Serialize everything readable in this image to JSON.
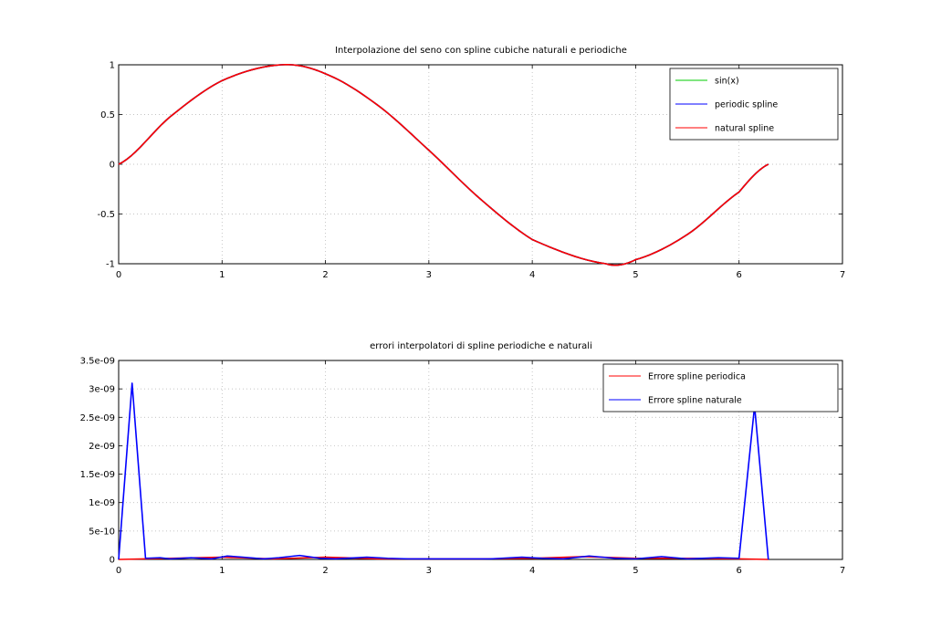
{
  "chart_data": [
    {
      "type": "line",
      "title": "Interpolazione del seno con spline cubiche naturali e periodiche",
      "xlabel": "",
      "ylabel": "",
      "xlim": [
        0,
        7
      ],
      "ylim": [
        -1,
        1
      ],
      "x_ticks": [
        "0",
        "1",
        "2",
        "3",
        "4",
        "5",
        "6",
        "7"
      ],
      "y_ticks": [
        "1",
        "0.5",
        "0",
        "-0.5",
        "-1"
      ],
      "grid": true,
      "legend_position": "top-right",
      "series": [
        {
          "name": "sin(x)",
          "color": "#00cc00",
          "x": [
            0,
            0.5,
            1,
            1.571,
            2,
            2.5,
            3,
            3.5,
            4,
            4.712,
            5,
            5.5,
            6,
            6.283
          ],
          "y": [
            0,
            0.479,
            0.841,
            1.0,
            0.909,
            0.598,
            0.141,
            -0.351,
            -0.757,
            -1.0,
            -0.959,
            -0.706,
            -0.279,
            0
          ]
        },
        {
          "name": "periodic spline",
          "color": "#0000ff",
          "x": [
            0,
            0.5,
            1,
            1.571,
            2,
            2.5,
            3,
            3.5,
            4,
            4.712,
            5,
            5.5,
            6,
            6.283
          ],
          "y": [
            0,
            0.479,
            0.841,
            1.0,
            0.909,
            0.598,
            0.141,
            -0.351,
            -0.757,
            -1.0,
            -0.959,
            -0.706,
            -0.279,
            0
          ]
        },
        {
          "name": "natural spline",
          "color": "#ff0000",
          "x": [
            0,
            0.5,
            1,
            1.571,
            2,
            2.5,
            3,
            3.5,
            4,
            4.712,
            5,
            5.5,
            6,
            6.283
          ],
          "y": [
            0,
            0.479,
            0.841,
            1.0,
            0.909,
            0.598,
            0.141,
            -0.351,
            -0.757,
            -1.0,
            -0.959,
            -0.706,
            -0.279,
            0
          ]
        }
      ]
    },
    {
      "type": "line",
      "title": "errori interpolatori di spline periodiche e naturali",
      "xlabel": "",
      "ylabel": "",
      "xlim": [
        0,
        7
      ],
      "ylim": [
        0,
        3.5e-09
      ],
      "x_ticks": [
        "0",
        "1",
        "2",
        "3",
        "4",
        "5",
        "6",
        "7"
      ],
      "y_ticks": [
        "3.5e-09",
        "3e-09",
        "2.5e-09",
        "2e-09",
        "1.5e-09",
        "1e-09",
        "5e-10",
        "0"
      ],
      "grid": true,
      "legend_position": "top-right",
      "series": [
        {
          "name": "Errore spline periodica",
          "color": "#ff0000",
          "x": [
            0,
            0.5,
            1.0,
            1.5,
            2.0,
            2.5,
            3.0,
            3.5,
            4.0,
            4.5,
            5.0,
            5.5,
            6.0,
            6.283
          ],
          "y": [
            0,
            2e-11,
            4e-11,
            1e-11,
            4e-11,
            1e-11,
            1e-11,
            1e-11,
            2e-11,
            5e-11,
            2e-11,
            2e-11,
            1e-11,
            0
          ]
        },
        {
          "name": "Errore spline naturale",
          "color": "#0000ff",
          "x": [
            0,
            0.13,
            0.26,
            0.4,
            0.5,
            0.7,
            0.9,
            1.05,
            1.2,
            1.4,
            1.55,
            1.75,
            1.95,
            2.1,
            2.4,
            2.6,
            2.8,
            3.0,
            3.3,
            3.6,
            3.9,
            4.1,
            4.3,
            4.55,
            4.8,
            5.0,
            5.25,
            5.5,
            5.8,
            6.0,
            6.15,
            6.283
          ],
          "y": [
            0,
            3.1e-09,
            2e-11,
            3e-11,
            1e-11,
            3e-11,
            1e-11,
            6e-11,
            4e-11,
            1e-11,
            3e-11,
            7e-11,
            2e-11,
            1e-11,
            4e-11,
            2e-11,
            1e-11,
            1e-11,
            1e-11,
            1e-11,
            4e-11,
            2e-11,
            1e-11,
            6e-11,
            2e-11,
            1e-11,
            5e-11,
            1e-11,
            3e-11,
            2e-11,
            2.7e-09,
            0
          ]
        }
      ]
    }
  ]
}
